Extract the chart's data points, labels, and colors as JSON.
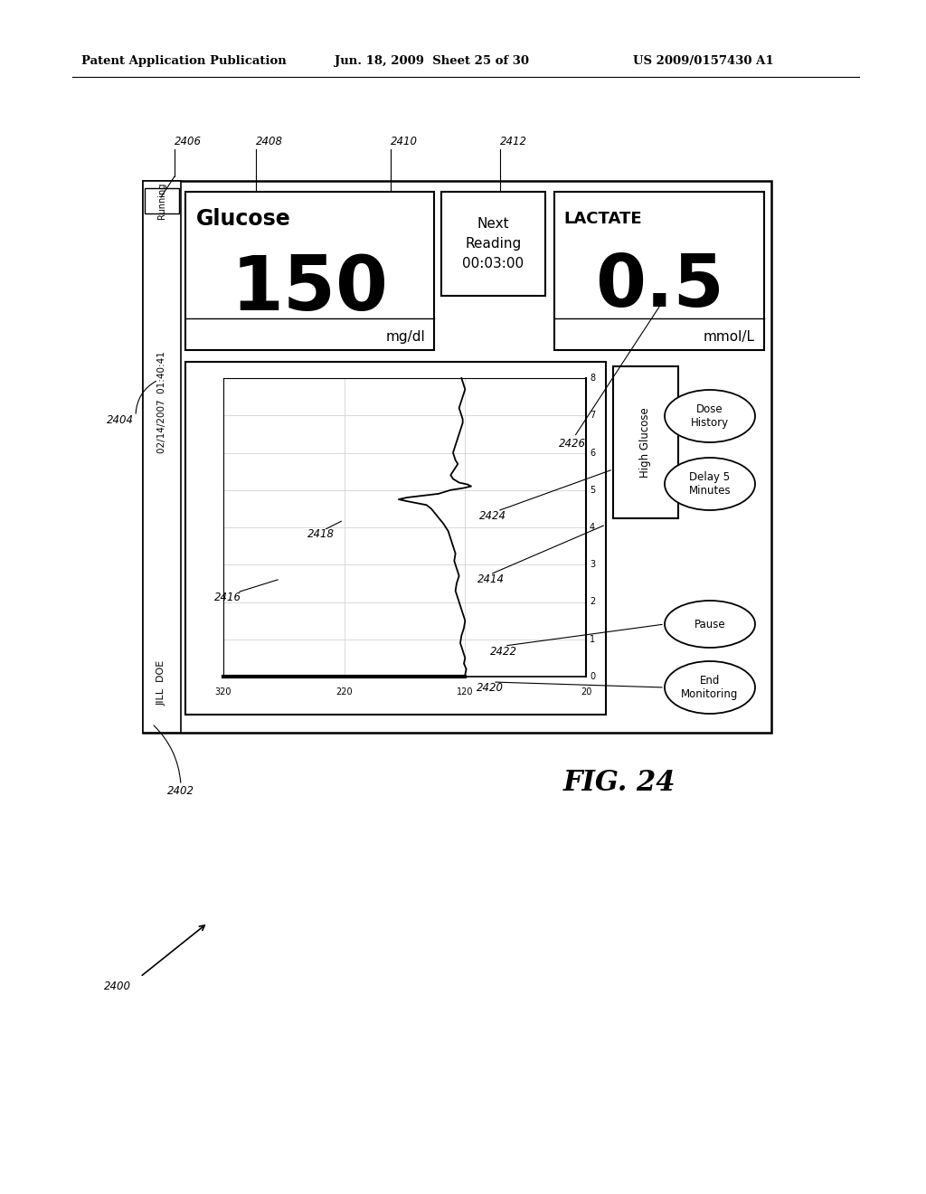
{
  "header_left": "Patent Application Publication",
  "header_mid": "Jun. 18, 2009  Sheet 25 of 30",
  "header_right": "US 2009/0157430 A1",
  "fig_label": "FIG. 24",
  "running_label": "Running",
  "glucose_title": "Glucose",
  "glucose_value": "150",
  "glucose_unit": "mg/dl",
  "next_reading_label": "Next\nReading\n00:03:00",
  "lactate_title": "LACTATE",
  "lactate_value": "0.5",
  "lactate_unit": "mmol/L",
  "alert_text": "High Glucose",
  "dose_history_text": "Dose\nHistory",
  "delay_text": "Delay 5\nMinutes",
  "pause_text": "Pause",
  "end_text": "End\nMonitoring",
  "jill_doe": "JILL  DOE",
  "date_time": "02/14/2007  01:40:41",
  "ref_2400": "2400",
  "ref_2402": "2402",
  "ref_2404": "2404",
  "ref_2406": "2406",
  "ref_2408": "2408",
  "ref_2410": "2410",
  "ref_2412": "2412",
  "ref_2414": "2414",
  "ref_2416": "2416",
  "ref_2418": "2418",
  "ref_2420": "2420",
  "ref_2422": "2422",
  "ref_2424": "2424",
  "ref_2426": "2426",
  "bg_color": "#ffffff"
}
